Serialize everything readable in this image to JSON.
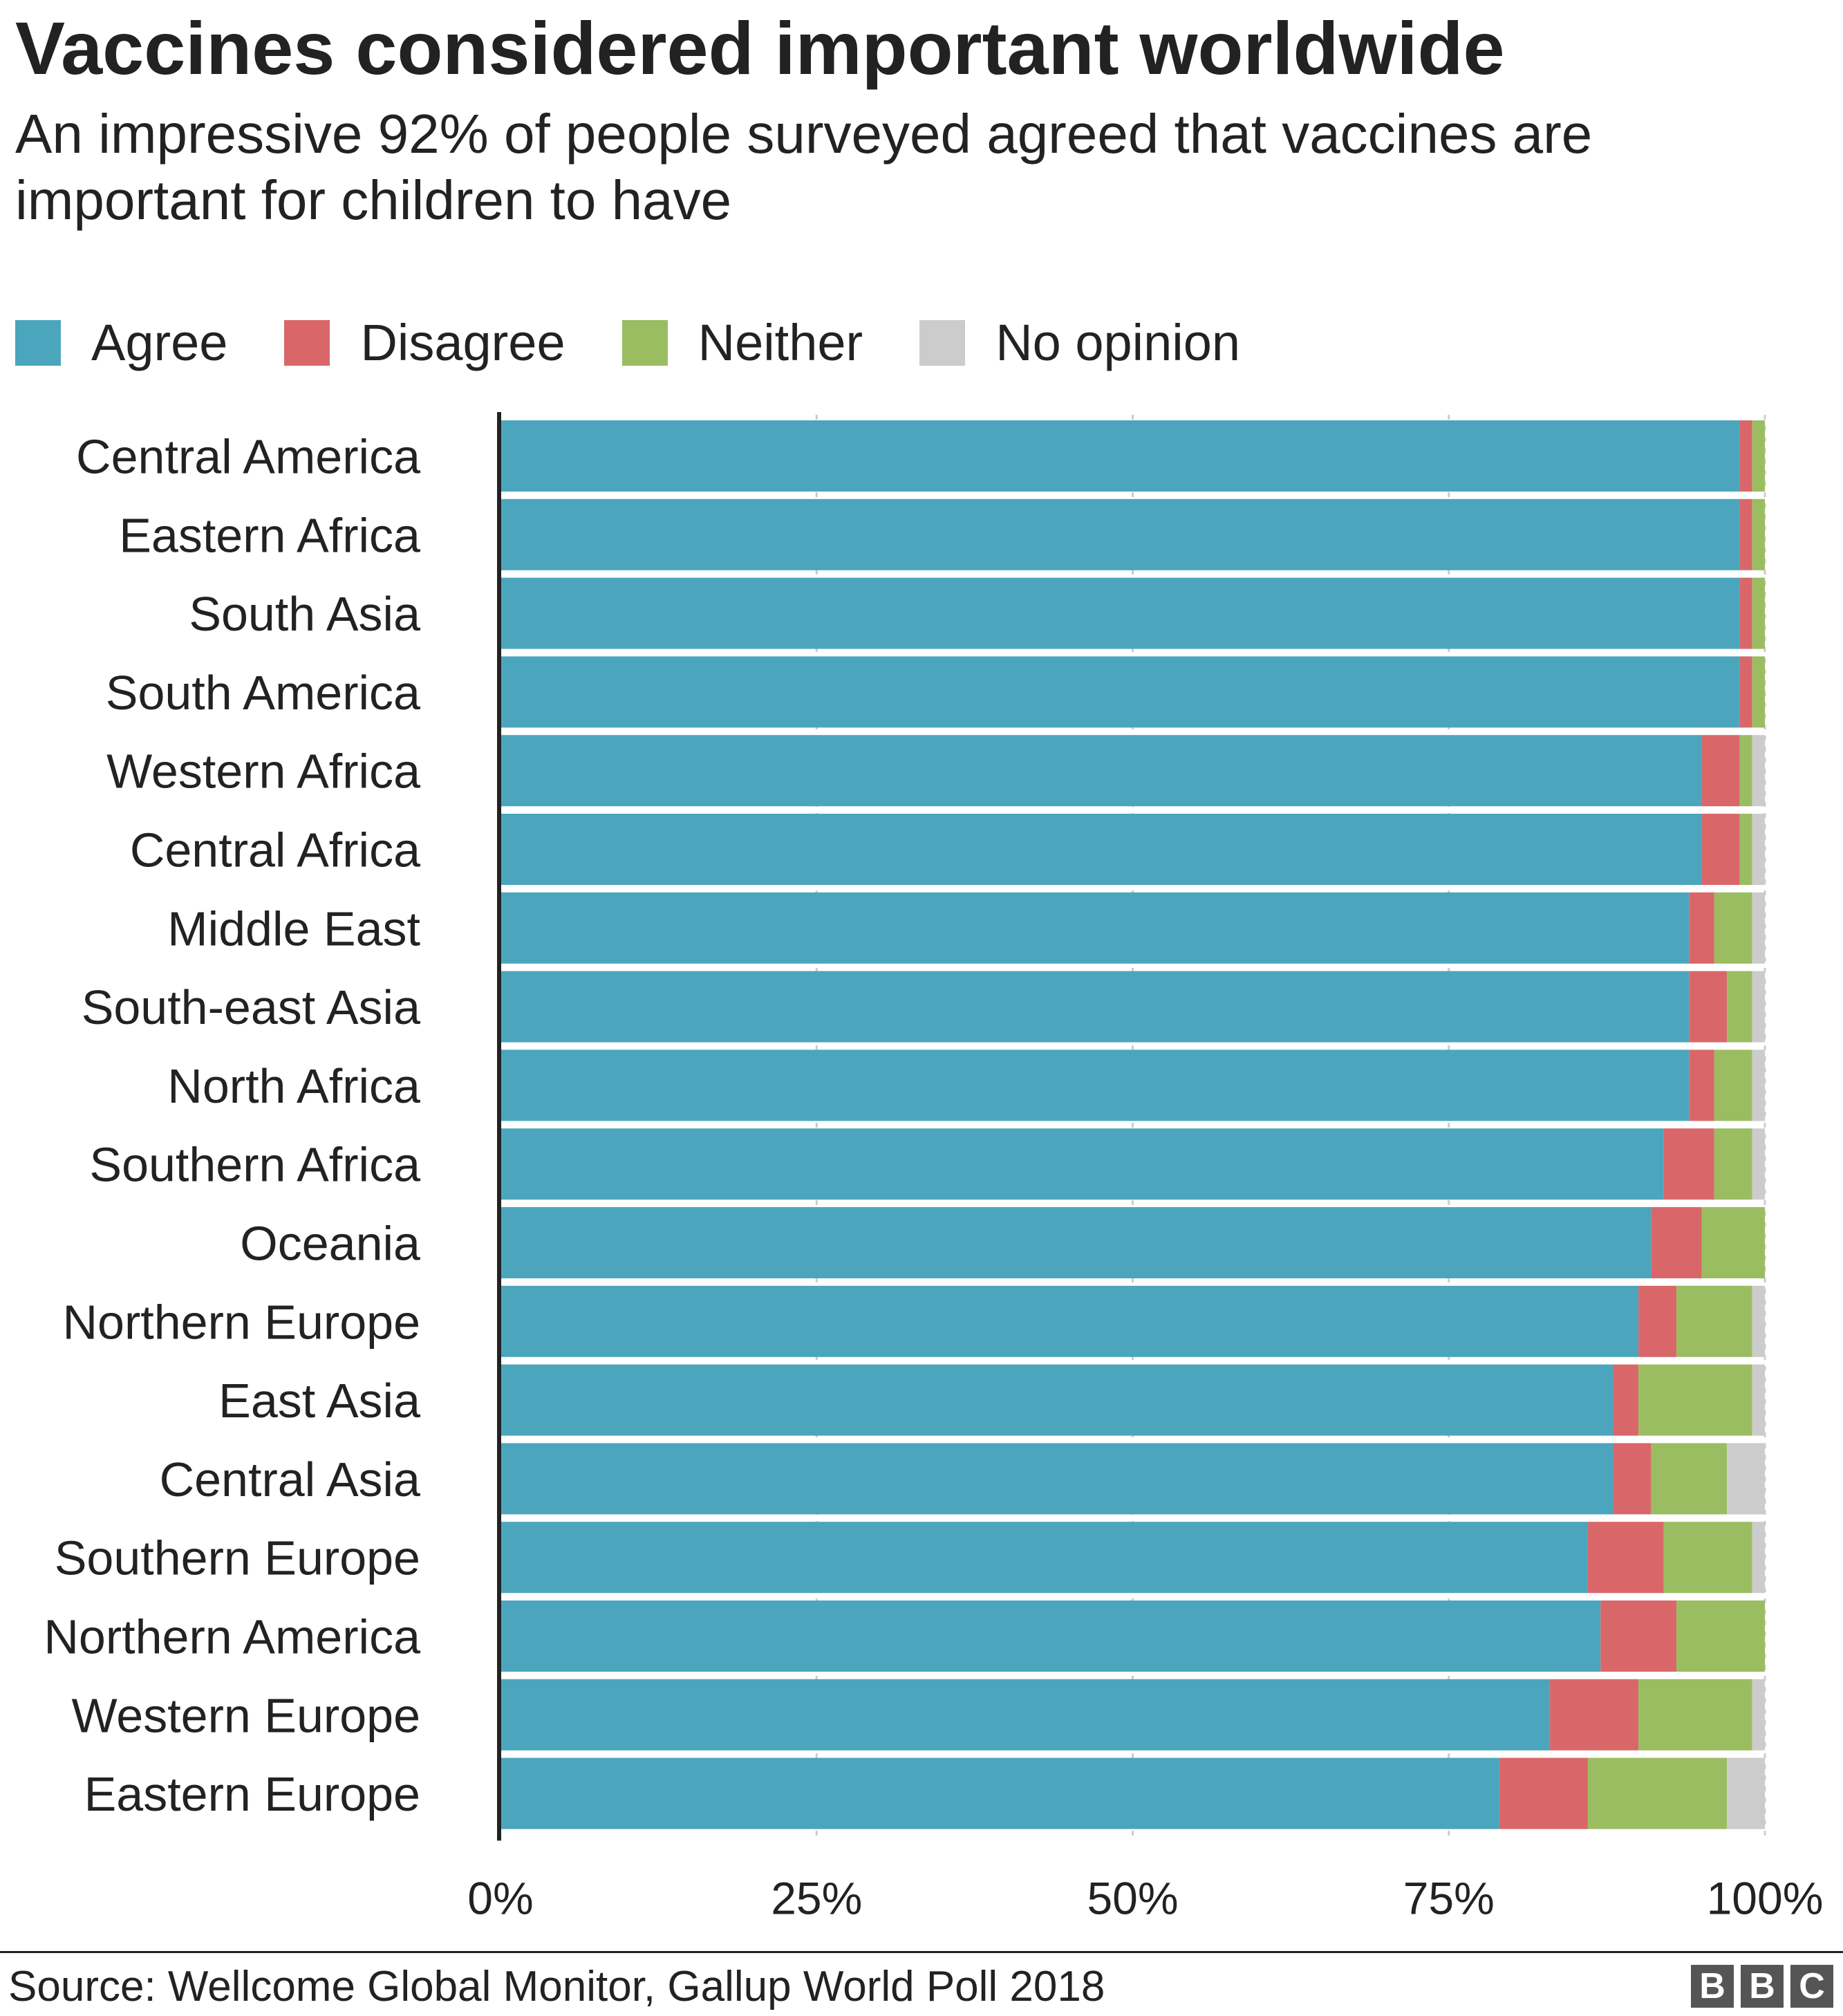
{
  "header": {
    "title": "Vaccines considered important worldwide",
    "subtitle": "An impressive 92% of people surveyed agreed that vaccines are important for children to have"
  },
  "legend": {
    "items": [
      {
        "label": "Agree",
        "color": "#4ba6bd"
      },
      {
        "label": "Disagree",
        "color": "#d9676a"
      },
      {
        "label": "Neither",
        "color": "#9bbd61"
      },
      {
        "label": "No opinion",
        "color": "#cccccc"
      }
    ]
  },
  "chart_data": {
    "type": "bar",
    "orientation": "horizontal",
    "stacked": true,
    "categories": [
      "Central America",
      "Eastern Africa",
      "South Asia",
      "South America",
      "Western Africa",
      "Central Africa",
      "Middle East",
      "South-east Asia",
      "North Africa",
      "Southern Africa",
      "Oceania",
      "Northern Europe",
      "East Asia",
      "Central Asia",
      "Southern Europe",
      "Northern America",
      "Western Europe",
      "Eastern Europe"
    ],
    "series": [
      {
        "name": "Agree",
        "color": "#4ba6bd",
        "values": [
          98,
          98,
          98,
          98,
          95,
          95,
          94,
          94,
          94,
          92,
          91,
          90,
          88,
          88,
          86,
          87,
          83,
          79
        ]
      },
      {
        "name": "Disagree",
        "color": "#d9676a",
        "values": [
          1,
          1,
          1,
          1,
          3,
          3,
          2,
          3,
          2,
          4,
          4,
          3,
          2,
          3,
          6,
          6,
          7,
          7
        ]
      },
      {
        "name": "Neither",
        "color": "#9bbd61",
        "values": [
          1,
          1,
          1,
          1,
          1,
          1,
          3,
          2,
          3,
          3,
          5,
          6,
          9,
          6,
          7,
          7,
          9,
          11
        ]
      },
      {
        "name": "No opinion",
        "color": "#cccccc",
        "values": [
          0,
          0,
          0,
          0,
          1,
          1,
          1,
          1,
          1,
          1,
          0,
          1,
          1,
          3,
          1,
          0,
          1,
          3
        ]
      }
    ],
    "xlim": [
      0,
      100
    ],
    "xticks": [
      0,
      25,
      50,
      75,
      100
    ],
    "xtick_labels": [
      "0%",
      "25%",
      "50%",
      "75%",
      "100%"
    ],
    "grid": "vertical dashed",
    "legend_position": "top-left"
  },
  "footer": {
    "source": "Source: Wellcome Global Monitor, Gallup World Poll 2018",
    "logo_letters": [
      "B",
      "B",
      "C"
    ]
  }
}
